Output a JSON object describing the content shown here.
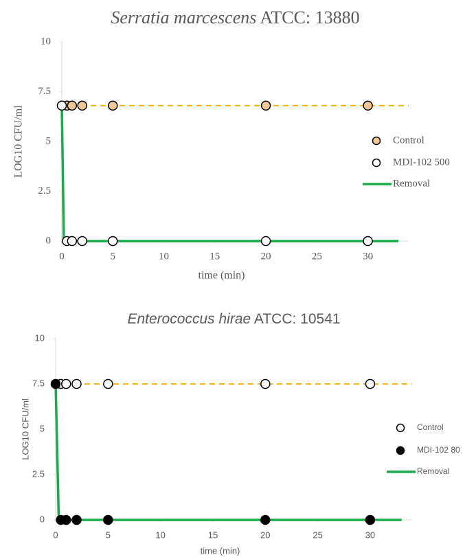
{
  "chart_data": [
    {
      "type": "scatter",
      "title_italic": "Serratia marcescens",
      "title_rest": "ATCC: 13880",
      "x_label": "time (min)",
      "y_label": "LOG10 CFU/ml",
      "xlim": [
        0,
        34
      ],
      "xticks": [
        0,
        5,
        10,
        15,
        20,
        25,
        30
      ],
      "ylim": [
        0,
        10
      ],
      "yticks": [
        0,
        2.5,
        5,
        7.5,
        10
      ],
      "series": [
        {
          "name": "Control",
          "color": "#f1c895",
          "x": [
            0.5,
            1,
            2,
            5,
            20,
            30
          ],
          "values": [
            6.8,
            6.8,
            6.8,
            6.8,
            6.8,
            6.8
          ]
        },
        {
          "name": "MDI-102 500",
          "color": "#ffffff",
          "x": [
            0,
            0.5,
            1,
            2,
            5,
            20,
            30
          ],
          "values": [
            6.8,
            0,
            0,
            0,
            0,
            0,
            0
          ]
        },
        {
          "name": "Removal",
          "color": "#1aab4a",
          "line": true,
          "x": [
            0,
            0.2,
            33
          ],
          "values": [
            6.8,
            0,
            0
          ]
        }
      ],
      "trend_line": {
        "color": "#f4b400",
        "x": [
          0,
          34
        ],
        "values": [
          6.8,
          6.8
        ]
      }
    },
    {
      "type": "scatter",
      "title_italic": "Enterococcus hirae",
      "title_rest": "ATCC: 10541",
      "x_label": "time (min)",
      "y_label": "LOG10  CFU/ml",
      "xlim": [
        0,
        34
      ],
      "xticks": [
        0,
        5,
        10,
        15,
        20,
        25,
        30
      ],
      "ylim": [
        0,
        10
      ],
      "yticks": [
        0,
        2.5,
        5,
        7.5,
        10
      ],
      "series": [
        {
          "name": "Control",
          "color": "#ffffff",
          "x": [
            0.5,
            1,
            2,
            5,
            20,
            30
          ],
          "values": [
            7.5,
            7.5,
            7.5,
            7.5,
            7.5,
            7.5
          ]
        },
        {
          "name": "MDI-102 80",
          "color": "#000000",
          "x": [
            0,
            0.5,
            1,
            2,
            5,
            20,
            30
          ],
          "values": [
            7.5,
            0,
            0,
            0,
            0,
            0,
            0
          ]
        },
        {
          "name": "Removal",
          "color": "#1aab4a",
          "line": true,
          "x": [
            0,
            0.3,
            33
          ],
          "values": [
            7.5,
            0,
            0
          ]
        }
      ],
      "trend_line": {
        "color": "#f4b400",
        "x": [
          0,
          34
        ],
        "values": [
          7.5,
          7.5
        ]
      }
    }
  ]
}
